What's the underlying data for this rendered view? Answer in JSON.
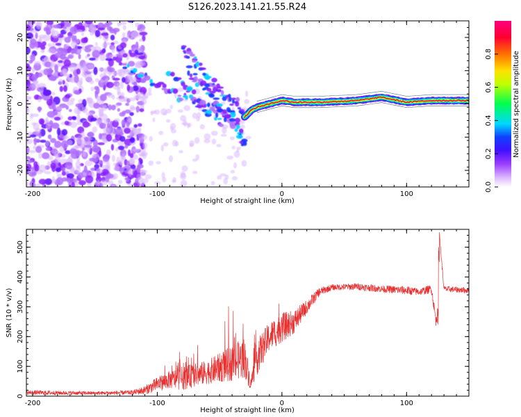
{
  "figure": {
    "title": "S126.2023.141.21.55.R24"
  },
  "chart_data": [
    {
      "type": "heatmap",
      "xlabel": "Height of straight line (km)",
      "ylabel": "Frequency (Hz)",
      "xlim": [
        -205,
        150
      ],
      "ylim": [
        -25,
        25
      ],
      "xticks": [
        -200,
        -100,
        0,
        100
      ],
      "yticks": [
        20,
        10,
        0,
        -10,
        -20
      ],
      "colorbar": {
        "label": "Normalized spectral amplitude",
        "range": [
          0,
          1
        ],
        "ticks": [
          0.0,
          0.2,
          0.4,
          0.6,
          0.8
        ],
        "colormap": [
          "#ffffff",
          "#c07cff",
          "#7a00ff",
          "#2020ff",
          "#00e0ff",
          "#00ff40",
          "#ffff00",
          "#ff8000",
          "#ff0040",
          "#ff0080"
        ]
      },
      "trace": {
        "description_points_x": [
          -205,
          -150,
          -120,
          -100,
          -80,
          -60,
          -40,
          -30,
          -25,
          -20,
          -10,
          0,
          10,
          30,
          60,
          80,
          100,
          120,
          150
        ],
        "description_points_y": [
          12,
          11,
          10,
          6,
          3,
          0,
          -3,
          -4,
          -2,
          -1,
          0,
          1,
          0.5,
          0.5,
          1,
          2,
          0.5,
          1,
          1
        ]
      }
    },
    {
      "type": "line",
      "xlabel": "Height of straight line (km)",
      "ylabel": "SNR (10 * v/v)",
      "xlim": [
        -205,
        150
      ],
      "ylim": [
        0,
        560
      ],
      "xticks": [
        -200,
        -100,
        0,
        100
      ],
      "yticks": [
        0,
        100,
        200,
        300,
        400,
        500
      ],
      "color": "#e83030",
      "envelope_x": [
        -205,
        -150,
        -120,
        -110,
        -100,
        -90,
        -80,
        -70,
        -60,
        -50,
        -40,
        -30,
        -25,
        -20,
        -10,
        0,
        10,
        20,
        30,
        40,
        60,
        80,
        100,
        110,
        120,
        124,
        126,
        130,
        150
      ],
      "envelope_y": [
        12,
        10,
        12,
        20,
        40,
        55,
        60,
        70,
        80,
        95,
        110,
        130,
        40,
        130,
        200,
        230,
        250,
        300,
        350,
        365,
        368,
        360,
        355,
        350,
        360,
        240,
        560,
        360,
        355
      ],
      "envelope_noise": [
        8,
        6,
        8,
        15,
        25,
        30,
        40,
        40,
        40,
        50,
        60,
        70,
        20,
        60,
        50,
        50,
        40,
        25,
        15,
        10,
        12,
        12,
        15,
        12,
        15,
        20,
        10,
        10,
        10
      ]
    }
  ]
}
